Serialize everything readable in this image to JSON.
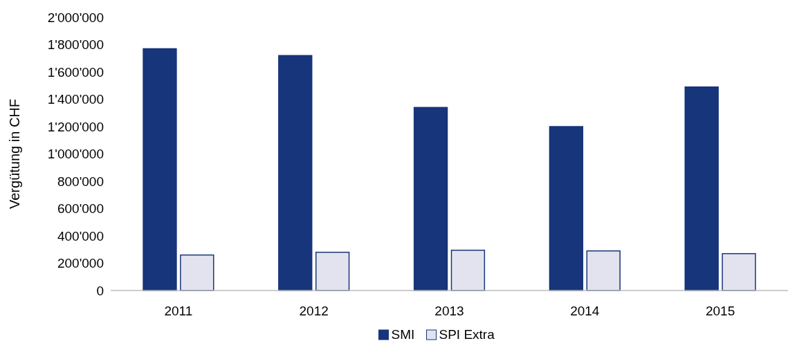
{
  "chart_data": {
    "type": "bar",
    "ylabel": "Vergütung in CHF",
    "categories": [
      "2011",
      "2012",
      "2013",
      "2014",
      "2015"
    ],
    "series": [
      {
        "name": "SMI",
        "color": "#17357a",
        "values": [
          1770000,
          1720000,
          1340000,
          1200000,
          1490000
        ]
      },
      {
        "name": "SPI Extra",
        "color": "#e2e3ee",
        "values": [
          260000,
          280000,
          295000,
          290000,
          270000
        ]
      }
    ],
    "ylim": [
      0,
      2000000
    ],
    "yticks": [
      0,
      {
        "value": 200000,
        "label": "200'000"
      },
      {
        "value": 400000,
        "label": "400'000"
      },
      {
        "value": 600000,
        "label": "600'000"
      },
      {
        "value": 800000,
        "label": "800'000"
      },
      {
        "value": 1000000,
        "label": "1'000'000"
      },
      {
        "value": 1200000,
        "label": "1'200'000"
      },
      {
        "value": 1400000,
        "label": "1'400'000"
      },
      {
        "value": 1600000,
        "label": "1'600'000"
      },
      {
        "value": 1800000,
        "label": "1'800'000"
      },
      {
        "value": 2000000,
        "label": "2'000'000"
      }
    ],
    "grid": false,
    "legend": "bottom"
  }
}
